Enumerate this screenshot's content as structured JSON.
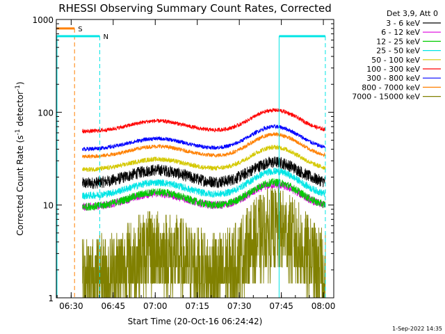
{
  "chart_data": {
    "type": "line",
    "title": "RHESSI Observing Summary Count Rates, Corrected",
    "xlabel": "Start Time (20-Oct-16 06:24:42)",
    "ylabel": "Corrected Count Rate (s",
    "ylabel_sup": "-1",
    "ylabel_mid": " detector",
    "ylabel_end": ")",
    "y_scale": "log",
    "ylim": [
      1,
      1000
    ],
    "x_range_minutes": [
      0,
      99
    ],
    "x_ticks": [
      {
        "label": "06:30",
        "minutes": 5.3
      },
      {
        "label": "06:45",
        "minutes": 20.3
      },
      {
        "label": "07:00",
        "minutes": 35.3
      },
      {
        "label": "07:15",
        "minutes": 50.3
      },
      {
        "label": "07:30",
        "minutes": 65.3
      },
      {
        "label": "07:45",
        "minutes": 80.3
      },
      {
        "label": "08:00",
        "minutes": 95.3
      }
    ],
    "y_ticks": [
      {
        "label": "1",
        "value": 1
      },
      {
        "label": "10",
        "value": 10
      },
      {
        "label": "100",
        "value": 100
      },
      {
        "label": "1000",
        "value": 1000
      }
    ],
    "legend": {
      "header": "Det 3,9, Att 0",
      "placement": "right"
    },
    "series": [
      {
        "name": "3 - 6 keV",
        "color": "#000000",
        "base": 17,
        "amp1": 1.4,
        "amp2": 1.7,
        "noise": 0.15
      },
      {
        "name": "6 - 12 keV",
        "color": "#dd00dd",
        "base": 9.5,
        "amp1": 1.4,
        "amp2": 1.75,
        "noise": 0.1
      },
      {
        "name": "12 - 25 keV",
        "color": "#00cc00",
        "base": 9.5,
        "amp1": 1.45,
        "amp2": 1.85,
        "noise": 0.1
      },
      {
        "name": "25 - 50 keV",
        "color": "#00e5e5",
        "base": 12.5,
        "amp1": 1.4,
        "amp2": 1.85,
        "noise": 0.09
      },
      {
        "name": "50 - 100 keV",
        "color": "#d4c800",
        "base": 24,
        "amp1": 1.3,
        "amp2": 1.75,
        "noise": 0.06
      },
      {
        "name": "100 - 300 keV",
        "color": "#ff0000",
        "base": 62,
        "amp1": 1.3,
        "amp2": 1.7,
        "noise": 0.05
      },
      {
        "name": "300 - 800 keV",
        "color": "#0000ff",
        "base": 40,
        "amp1": 1.3,
        "amp2": 1.75,
        "noise": 0.05
      },
      {
        "name": "800 - 7000 keV",
        "color": "#ff8000",
        "base": 33,
        "amp1": 1.3,
        "amp2": 1.75,
        "noise": 0.05
      },
      {
        "name": "7000 - 15000 keV",
        "color": "#808000",
        "base": 1.5,
        "amp1": 2.0,
        "amp2": 3.5,
        "noise": 0.3,
        "quantized": true
      }
    ],
    "annotations": [
      {
        "label": "S",
        "color": "#ff8000",
        "start_minutes": 0,
        "end_minutes": 6.5,
        "level": 800,
        "dashed_line_minutes": 6.5
      },
      {
        "label": "N",
        "color": "#00e5e5",
        "start_minutes": 0,
        "end_minutes": 15.5,
        "level": 660,
        "dashed_line_minutes": 15.5
      },
      {
        "label": "",
        "color": "#00e5e5",
        "start_minutes": 79.5,
        "end_minutes": 96,
        "level": 660,
        "dashed_line_minutes": 96
      }
    ],
    "data_gap_before_minutes": 9.3,
    "timestamp": "1-Sep-2022 14:35"
  }
}
